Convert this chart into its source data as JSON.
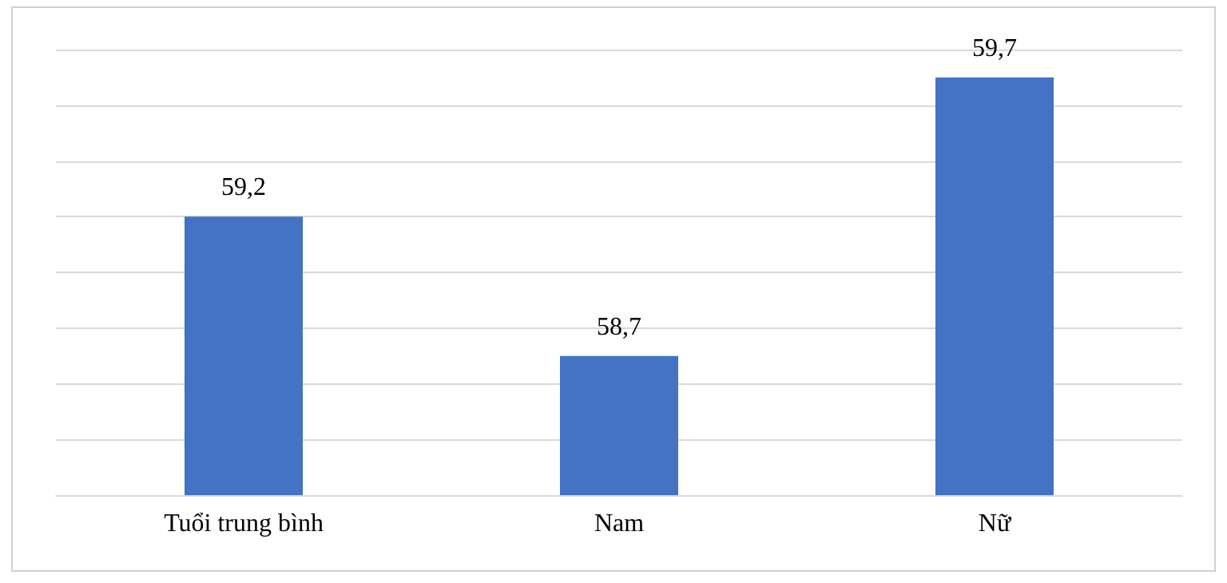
{
  "chart_data": {
    "type": "bar",
    "categories": [
      "Tuổi trung bình",
      "Nam",
      "Nữ"
    ],
    "series": [
      {
        "color": "#4472c4",
        "values": [
          59.2,
          58.7,
          59.7
        ],
        "value_labels": [
          "59,2",
          "58,7",
          "59,7"
        ]
      }
    ],
    "ylim": [
      58.2,
      59.8
    ],
    "yticks": [
      {
        "value": 58.2,
        "label": null
      },
      {
        "value": 58.4,
        "label": null
      },
      {
        "value": 58.6,
        "label": null
      },
      {
        "value": 58.8,
        "label": null
      },
      {
        "value": 59.0,
        "label": null
      },
      {
        "value": 59.2,
        "label": null
      },
      {
        "value": 59.4,
        "label": null
      },
      {
        "value": 59.6,
        "label": null
      },
      {
        "value": 59.8,
        "label": null
      }
    ],
    "grid": "y",
    "tick_labels": "x"
  }
}
